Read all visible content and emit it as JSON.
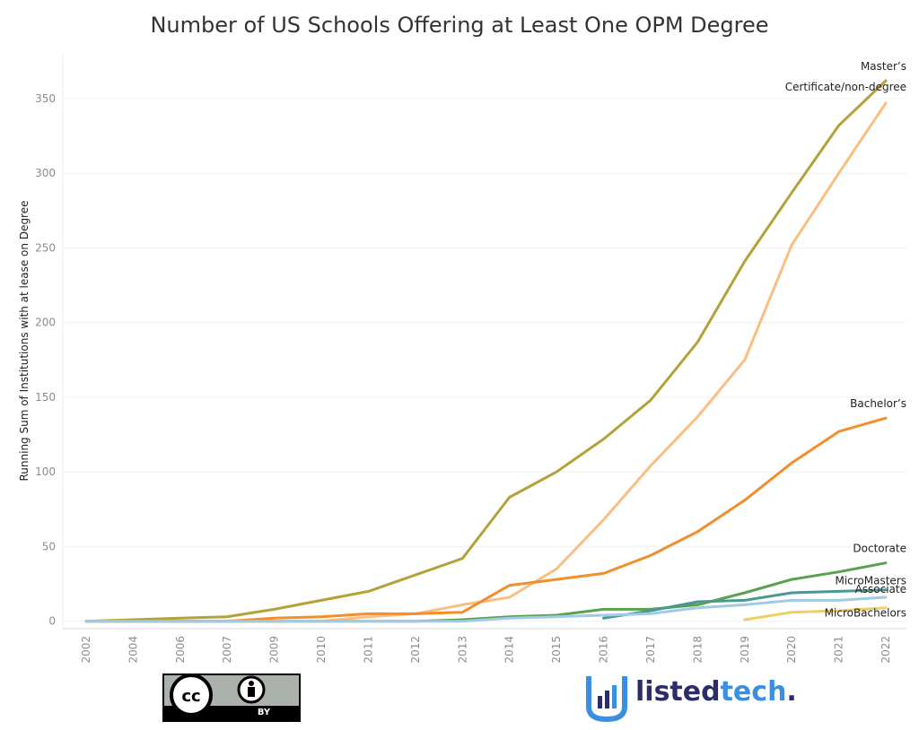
{
  "chart_data": {
    "type": "line",
    "title": "Number of US Schools Offering at Least One OPM Degree",
    "ylabel": "Running Sum of Institutions with at lease on Degree",
    "xlabel": "",
    "x": [
      "2002",
      "2004",
      "2006",
      "2007",
      "2009",
      "2010",
      "2011",
      "2012",
      "2013",
      "2014",
      "2015",
      "2016",
      "2017",
      "2018",
      "2019",
      "2020",
      "2021",
      "2022"
    ],
    "ylim": [
      -5,
      380
    ],
    "yticks": [
      0,
      50,
      100,
      150,
      200,
      250,
      300,
      350
    ],
    "grid": true,
    "legend": "end-of-line labels",
    "series": [
      {
        "name": "Master’s",
        "color": "#b3a23a",
        "values": [
          0,
          1,
          2,
          3,
          8,
          14,
          20,
          31,
          42,
          83,
          100,
          122,
          148,
          187,
          241,
          287,
          332,
          362
        ]
      },
      {
        "name": "Certificate/non-degree",
        "color": "#f9be80",
        "values": [
          0,
          0,
          0,
          0,
          0,
          0,
          3,
          5,
          11,
          16,
          35,
          68,
          104,
          137,
          175,
          252,
          300,
          347
        ]
      },
      {
        "name": "Bachelor’s",
        "color": "#f28e2b",
        "values": [
          0,
          0,
          0,
          0,
          2,
          3,
          5,
          5,
          6,
          24,
          28,
          32,
          44,
          60,
          81,
          106,
          127,
          136
        ]
      },
      {
        "name": "Doctorate",
        "color": "#59a14f",
        "values": [
          0,
          0,
          0,
          0,
          0,
          0,
          0,
          0,
          1,
          3,
          4,
          8,
          8,
          11,
          19,
          28,
          33,
          39
        ]
      },
      {
        "name": "MicroMasters",
        "color": "#499894",
        "values": [
          null,
          null,
          null,
          null,
          null,
          null,
          null,
          null,
          null,
          null,
          null,
          2,
          7,
          13,
          14,
          19,
          20,
          21
        ]
      },
      {
        "name": "Associate",
        "color": "#a0cbe8",
        "values": [
          0,
          0,
          0,
          0,
          0,
          0,
          0,
          0,
          0,
          2,
          3,
          4,
          5,
          9,
          11,
          14,
          14,
          16
        ]
      },
      {
        "name": "MicroBachelors",
        "color": "#f1ce63",
        "values": [
          null,
          null,
          null,
          null,
          null,
          null,
          null,
          null,
          null,
          null,
          null,
          null,
          null,
          null,
          1,
          6,
          7,
          9
        ]
      }
    ]
  },
  "license": {
    "label": "BY"
  },
  "brand": {
    "name": "listedtech.",
    "primary": "#2c2c6b",
    "accent": "#3b8fe0"
  }
}
